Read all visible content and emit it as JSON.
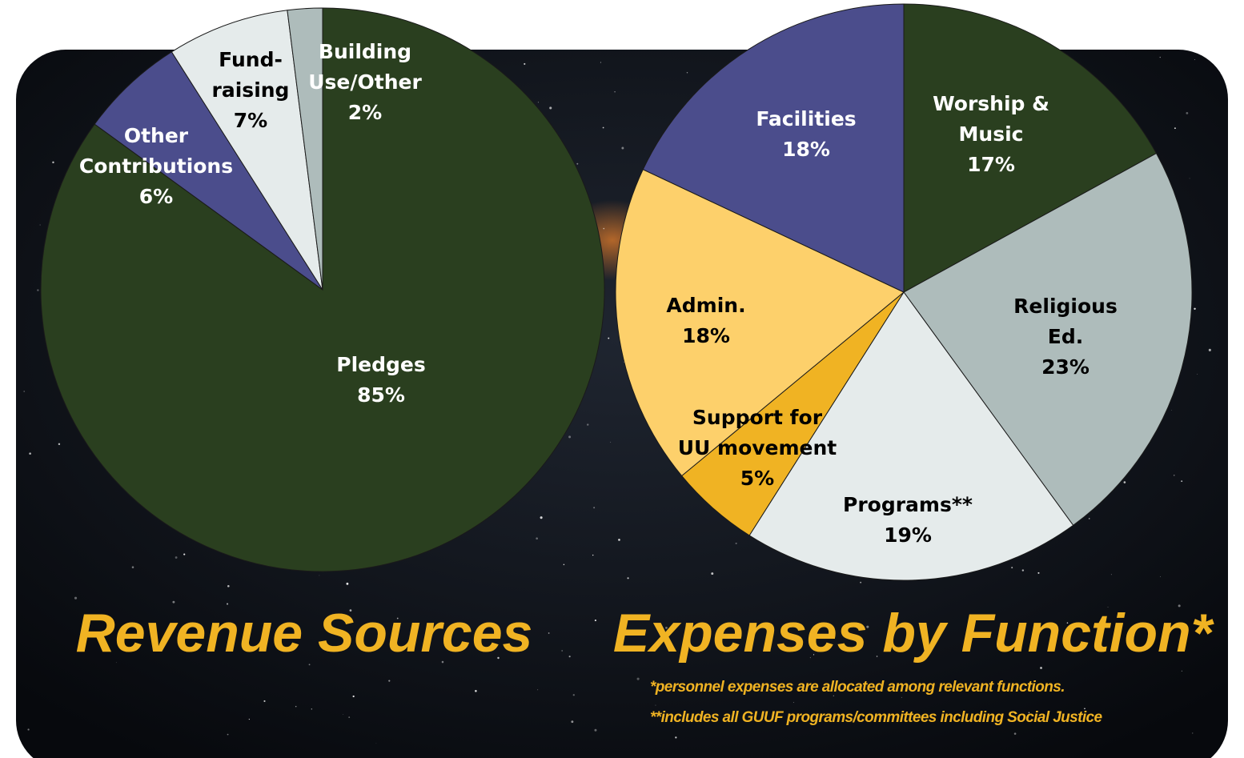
{
  "chart_data": [
    {
      "type": "pie",
      "title": "Revenue Sources",
      "categories": [
        "Pledges",
        "Other\nContributions",
        "Fund-\nraising",
        "Building\nUse/Other"
      ],
      "values": [
        85,
        6,
        7,
        2
      ],
      "value_labels": [
        "85%",
        "6%",
        "7%",
        "2%"
      ],
      "colors": [
        "#2a3f1f",
        "#4b4d8c",
        "#e5ebeb",
        "#aebcbb"
      ]
    },
    {
      "type": "pie",
      "title": "Expenses by Function*",
      "categories": [
        "Worship &\nMusic",
        "Religious\nEd.",
        "Programs**",
        "Support for\nUU movement",
        "Admin.",
        "Facilities"
      ],
      "values": [
        17,
        23,
        19,
        5,
        18,
        18
      ],
      "value_labels": [
        "17%",
        "23%",
        "19%",
        "5%",
        "18%",
        "18%"
      ],
      "colors": [
        "#2a3f1f",
        "#aebcbb",
        "#e5ebeb",
        "#f0b323",
        "#fdd06b",
        "#4b4d8c"
      ],
      "notes": [
        "*personnel expenses are allocated among relevant functions.",
        "**includes all GUUF programs/committees including Social Justice"
      ]
    }
  ]
}
